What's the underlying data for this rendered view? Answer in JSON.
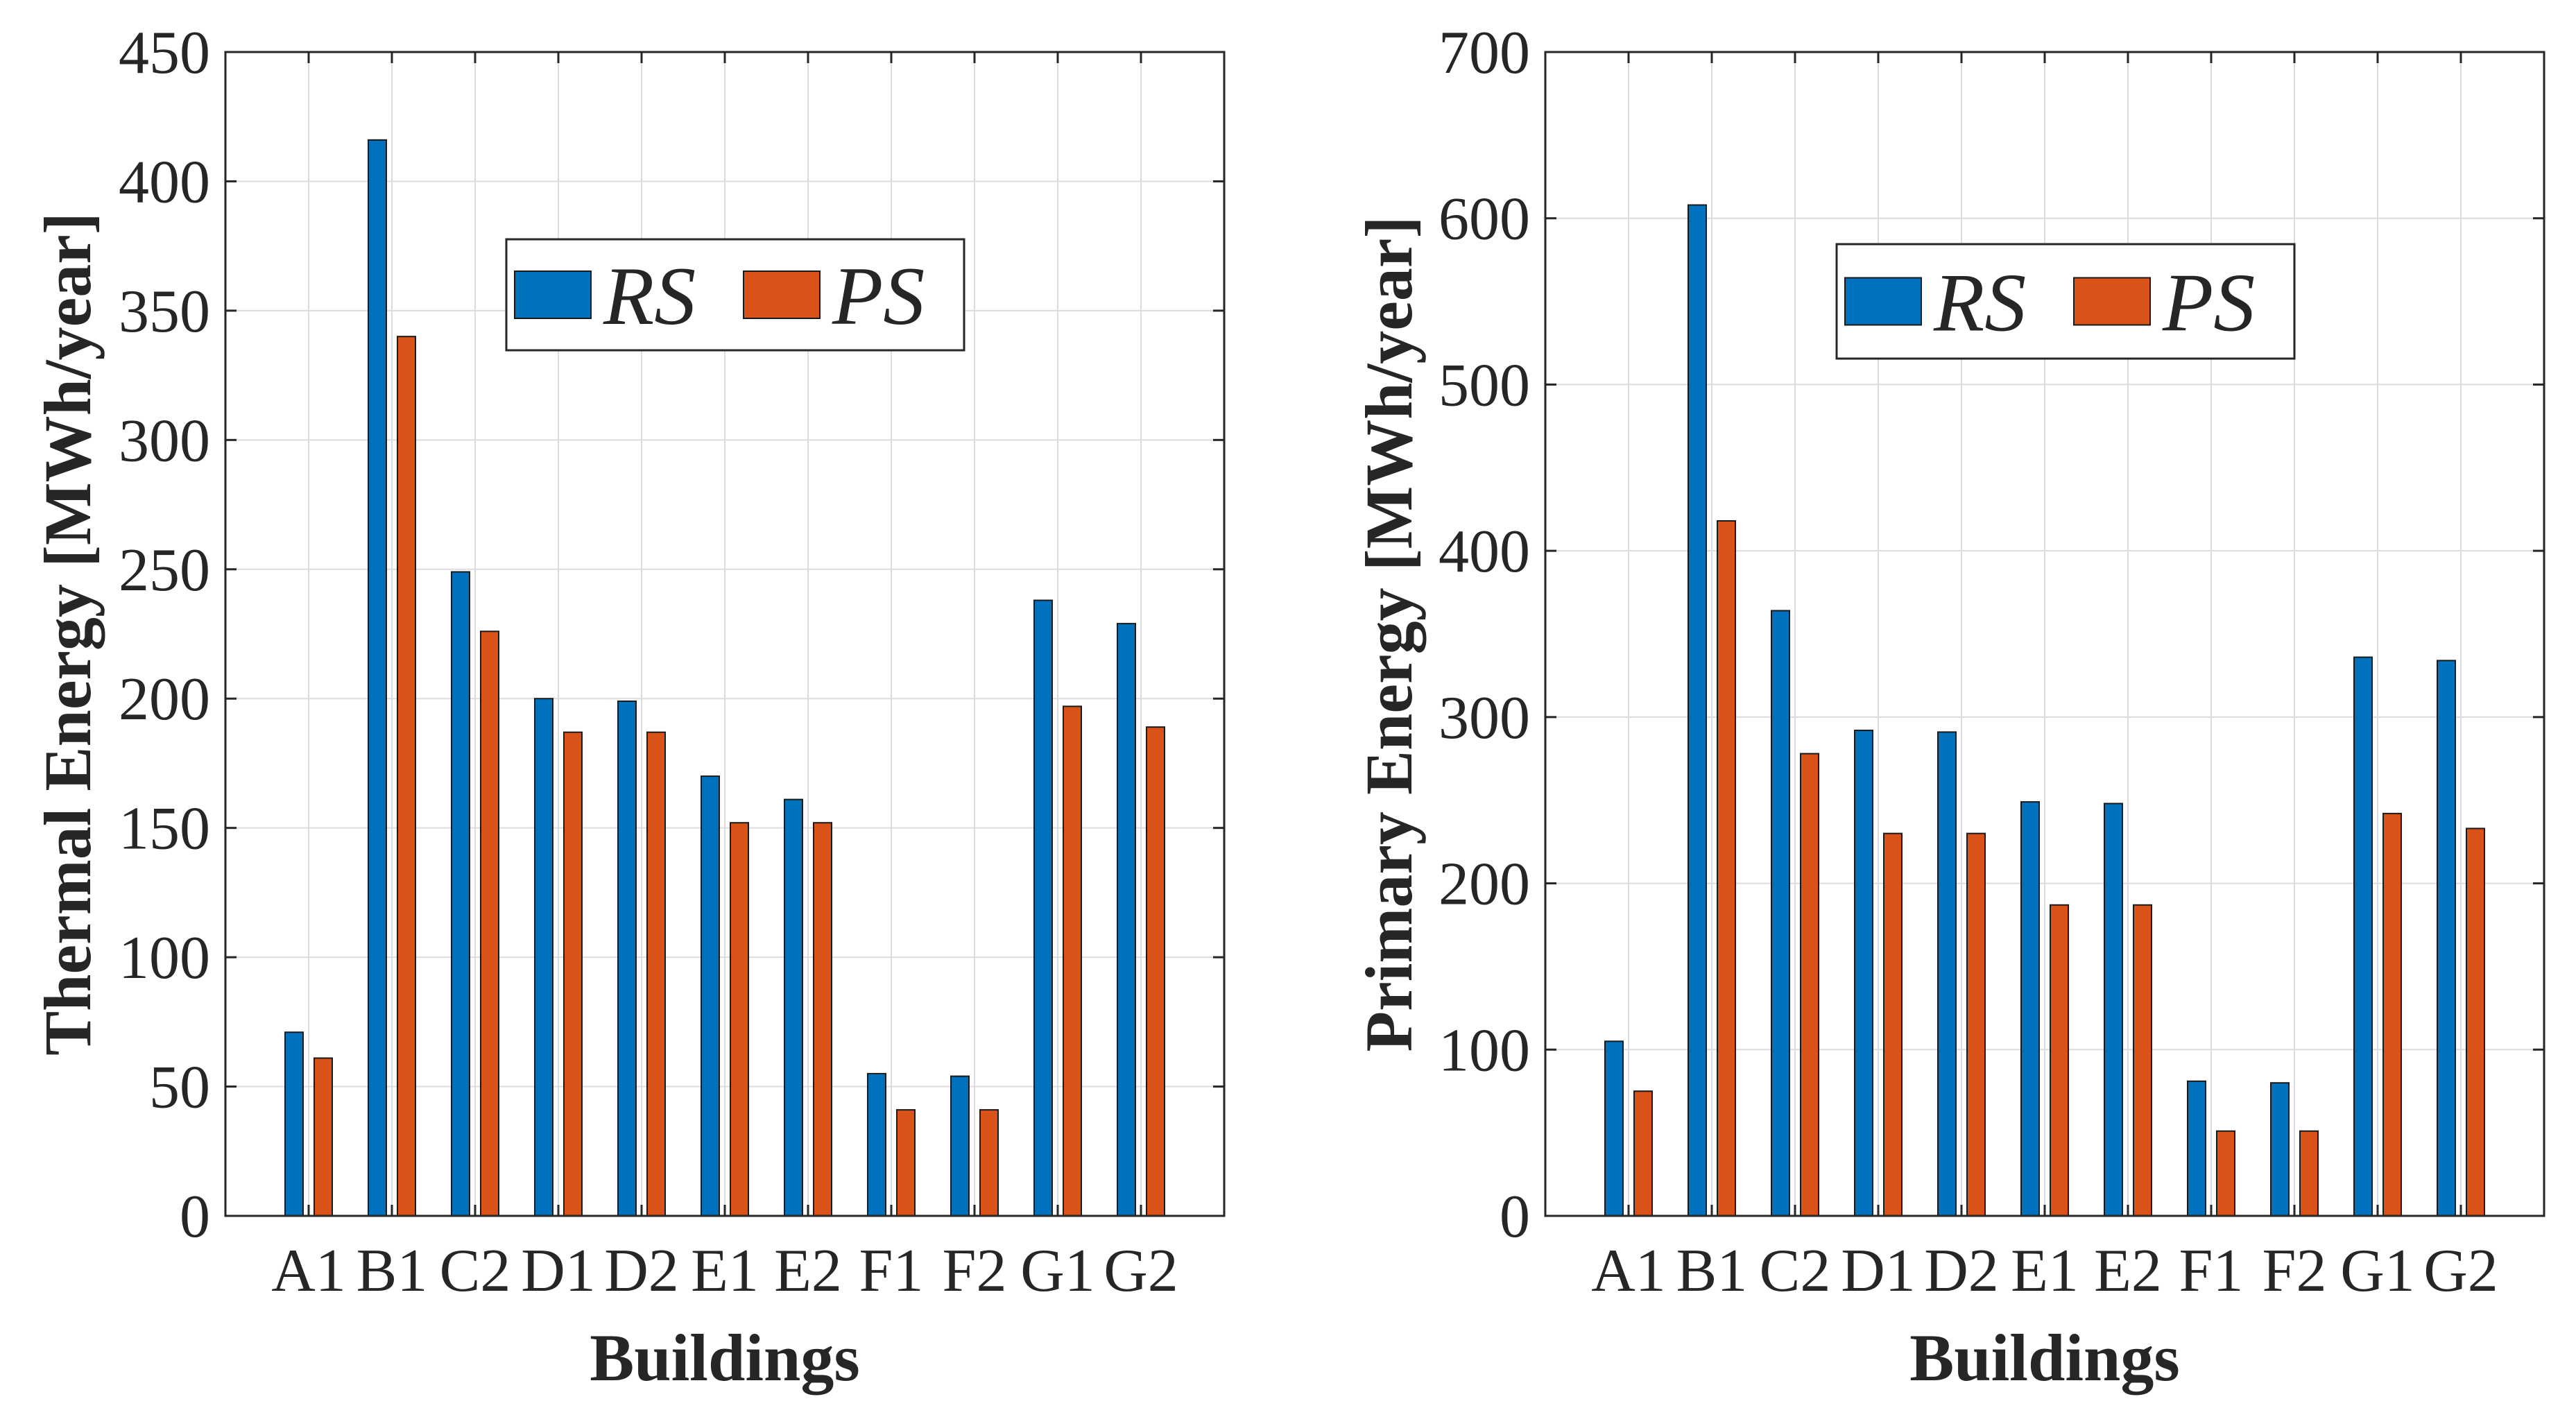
{
  "chart_data": [
    {
      "type": "bar",
      "categories": [
        "A1",
        "B1",
        "C2",
        "D1",
        "D2",
        "E1",
        "E2",
        "F1",
        "F2",
        "G1",
        "G2"
      ],
      "series": [
        {
          "name": "RS",
          "color": "#0072BD",
          "values": [
            71,
            416,
            249,
            200,
            199,
            170,
            161,
            55,
            54,
            238,
            229
          ]
        },
        {
          "name": "PS",
          "color": "#D95319",
          "values": [
            61,
            340,
            226,
            187,
            187,
            152,
            152,
            41,
            41,
            197,
            189
          ]
        }
      ],
      "title": "",
      "xlabel": "Buildings",
      "ylabel": "Thermal Energy [MWh/year]",
      "ylim": [
        0,
        450
      ],
      "yticks": [
        "0",
        "50",
        "100",
        "150",
        "200",
        "250",
        "300",
        "350",
        "400",
        "450"
      ],
      "grid": true,
      "legend": {
        "position": "top-center",
        "entries": [
          "RS",
          "PS"
        ]
      }
    },
    {
      "type": "bar",
      "categories": [
        "A1",
        "B1",
        "C2",
        "D1",
        "D2",
        "E1",
        "E2",
        "F1",
        "F2",
        "G1",
        "G2"
      ],
      "series": [
        {
          "name": "RS",
          "color": "#0072BD",
          "values": [
            105,
            608,
            364,
            292,
            291,
            249,
            248,
            81,
            80,
            336,
            334
          ]
        },
        {
          "name": "PS",
          "color": "#D95319",
          "values": [
            75,
            418,
            278,
            230,
            230,
            187,
            187,
            51,
            51,
            242,
            233
          ]
        }
      ],
      "title": "",
      "xlabel": "Buildings",
      "ylabel": "Primary Energy [MWh/year]",
      "ylim": [
        0,
        700
      ],
      "yticks": [
        "0",
        "100",
        "200",
        "300",
        "400",
        "500",
        "600",
        "700"
      ],
      "grid": true,
      "legend": {
        "position": "top-center",
        "entries": [
          "RS",
          "PS"
        ]
      }
    }
  ]
}
